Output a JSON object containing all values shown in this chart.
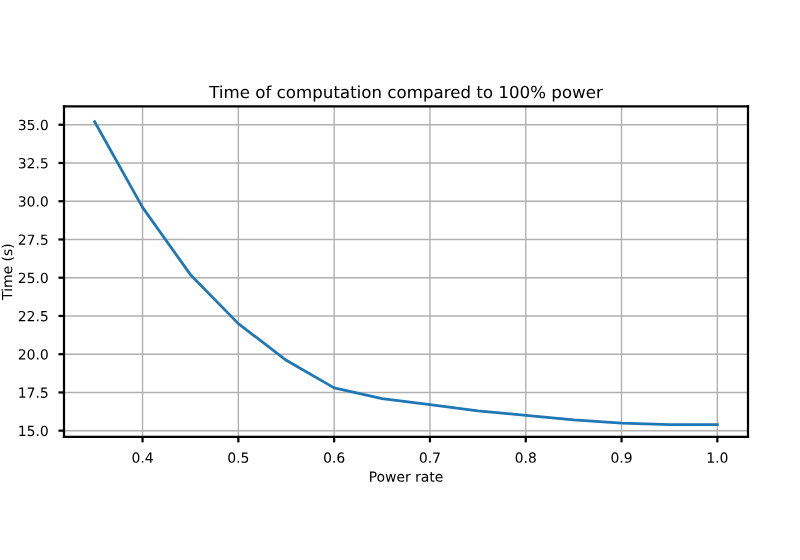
{
  "chart_data": {
    "type": "line",
    "title": "Time of computation compared to 100% power",
    "xlabel": "Power rate",
    "ylabel": "Time (s)",
    "x": [
      0.35,
      0.4,
      0.45,
      0.5,
      0.55,
      0.6,
      0.65,
      0.7,
      0.75,
      0.8,
      0.85,
      0.9,
      0.95,
      1.0
    ],
    "series": [
      {
        "color": "#1f77b4",
        "values": [
          35.2,
          29.6,
          25.2,
          22.0,
          19.6,
          17.8,
          17.1,
          16.7,
          16.3,
          16.0,
          15.7,
          15.5,
          15.4,
          15.4
        ]
      }
    ],
    "xlim": [
      0.318,
      1.032
    ],
    "ylim": [
      14.6,
      36.2
    ],
    "xticks": [
      0.4,
      0.5,
      0.6,
      0.7,
      0.8,
      0.9,
      {
        "value": 1.0,
        "label": "1.0"
      }
    ],
    "yticks": [
      {
        "value": 15,
        "label": "15.0"
      },
      {
        "value": 17.5,
        "label": "17.5"
      },
      {
        "value": 20,
        "label": "20.0"
      },
      {
        "value": 22.5,
        "label": "22.5"
      },
      {
        "value": 25,
        "label": "25.0"
      },
      {
        "value": 27.5,
        "label": "27.5"
      },
      {
        "value": 30,
        "label": "30.0"
      },
      {
        "value": 32.5,
        "label": "32.5"
      },
      {
        "value": 35,
        "label": "35.0"
      }
    ],
    "grid": true
  }
}
